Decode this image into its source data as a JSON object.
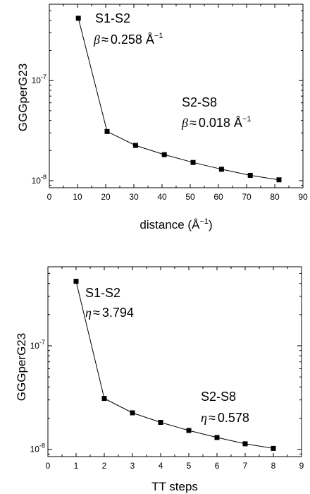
{
  "chart_data": [
    {
      "type": "line",
      "ylabel": "GGGperG23",
      "xlabel": "distance",
      "xlabel_unit": "(Å",
      "xlabel_exp": "−1",
      "xlabel_close": ")",
      "xlim": [
        0,
        90
      ],
      "ylog": true,
      "ylim": [
        8.5e-09,
        5.8e-07
      ],
      "x_ticks": [
        "0",
        "10",
        "20",
        "30",
        "40",
        "50",
        "60",
        "70",
        "80",
        "90"
      ],
      "y_tick_labels": [
        {
          "base": "10",
          "exp": "-8",
          "value": 1e-08
        },
        {
          "base": "10",
          "exp": "-7",
          "value": 1e-07
        }
      ],
      "x": [
        10.3,
        20.5,
        30.6,
        40.8,
        51.0,
        61.1,
        71.3,
        81.5
      ],
      "values": [
        4.2e-07,
        3.1e-08,
        2.25e-08,
        1.82e-08,
        1.52e-08,
        1.3e-08,
        1.13e-08,
        1.02e-08
      ],
      "annotations": [
        {
          "line1": "S1-S2",
          "sym": "β",
          "approx": "≈",
          "val": "0.258",
          "unit": "Å",
          "exp": "−1"
        },
        {
          "line1": "S2-S8",
          "sym": "β",
          "approx": "≈",
          "val": "0.018",
          "unit": "Å",
          "exp": "−1"
        }
      ]
    },
    {
      "type": "line",
      "ylabel": "GGGperG23",
      "xlabel": "TT steps",
      "xlim": [
        0,
        9
      ],
      "ylog": true,
      "ylim": [
        8.5e-09,
        5.8e-07
      ],
      "x_ticks": [
        "0",
        "1",
        "2",
        "3",
        "4",
        "5",
        "6",
        "7",
        "8",
        "9"
      ],
      "y_tick_labels": [
        {
          "base": "10",
          "exp": "-8",
          "value": 1e-08
        },
        {
          "base": "10",
          "exp": "-7",
          "value": 1e-07
        }
      ],
      "x": [
        1,
        2,
        3,
        4,
        5,
        6,
        7,
        8
      ],
      "values": [
        4.2e-07,
        3.1e-08,
        2.25e-08,
        1.82e-08,
        1.52e-08,
        1.3e-08,
        1.13e-08,
        1.02e-08
      ],
      "annotations": [
        {
          "line1": "S1-S2",
          "sym": "η",
          "approx": "≈",
          "val": "3.794"
        },
        {
          "line1": "S2-S8",
          "sym": "η",
          "approx": "≈",
          "val": "0.578"
        }
      ]
    }
  ]
}
